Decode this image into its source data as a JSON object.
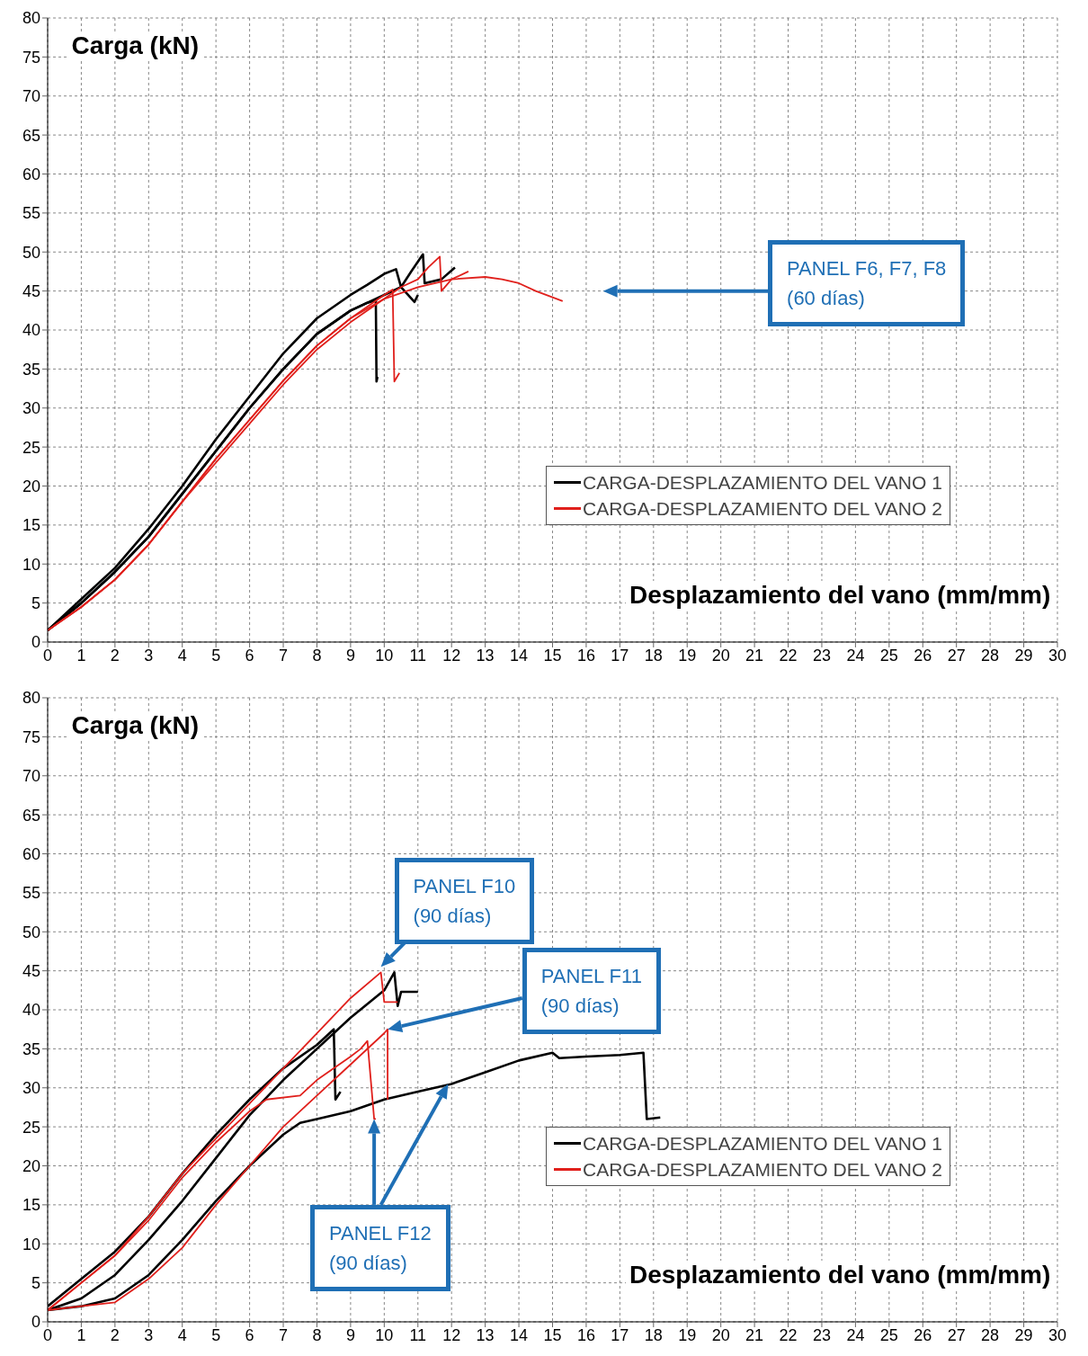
{
  "chart_data": [
    {
      "type": "line",
      "ylabel": "Carga (kN)",
      "xlabel": "Desplazamiento del vano (mm/mm)",
      "xlim": [
        0,
        30
      ],
      "xticks": [
        0,
        1,
        2,
        3,
        4,
        5,
        6,
        7,
        8,
        9,
        10,
        11,
        12,
        13,
        14,
        15,
        16,
        17,
        18,
        19,
        20,
        21,
        22,
        23,
        24,
        25,
        26,
        27,
        28,
        29,
        30
      ],
      "ylim": [
        0,
        80
      ],
      "yticks": [
        0,
        5,
        10,
        15,
        20,
        25,
        30,
        35,
        40,
        45,
        50,
        55,
        60,
        65,
        70,
        75,
        80
      ],
      "grid": true,
      "legend": "bottom right",
      "line_style": "solid",
      "annotations": [
        "PANEL F6, F7, F8\n(60 días)"
      ],
      "series": [
        {
          "name": "CARGA-DESPLAZAMIENTO DEL VANO 1",
          "color": "#000000",
          "x": [
            0,
            1,
            2,
            3,
            4,
            5,
            6,
            7,
            8,
            9,
            9.5,
            9.75,
            9.77,
            9.8
          ],
          "values": [
            1.5,
            5,
            9,
            13.5,
            19,
            24.5,
            30,
            35,
            39.5,
            42.5,
            43.5,
            43.8,
            33.4,
            34
          ]
        },
        {
          "color": "#000000",
          "x": [
            0,
            1,
            2,
            3,
            4,
            5,
            6,
            7,
            8,
            9,
            9.5,
            10,
            10.35,
            10.5,
            10.8,
            11.15,
            11.2,
            11.7,
            12.1
          ],
          "values": [
            1.5,
            5.5,
            9.5,
            14.5,
            20,
            26,
            31.5,
            37,
            41.5,
            44.5,
            45.8,
            47.2,
            47.8,
            45.5,
            47.5,
            49.7,
            46,
            46.5,
            48
          ]
        },
        {
          "color": "#000000",
          "x": [
            0,
            1,
            2,
            3,
            4,
            5,
            6,
            7,
            8,
            9,
            10,
            10.5,
            10.9,
            11
          ],
          "values": [
            1.5,
            5,
            9,
            13.5,
            19,
            24.5,
            30,
            35,
            39.5,
            42.5,
            44.5,
            45.5,
            43.6,
            44.5
          ]
        },
        {
          "name": "CARGA-DESPLAZAMIENTO DEL VANO 2",
          "color": "#e0201c",
          "x": [
            0,
            1,
            2,
            3,
            4,
            5,
            6,
            7,
            8,
            9,
            9.5,
            10,
            10.25,
            10.3,
            10.45
          ],
          "values": [
            1.5,
            4.5,
            8,
            12.5,
            18,
            23.5,
            28.5,
            33.5,
            38,
            41.5,
            43,
            44.5,
            45.2,
            33.4,
            34.5
          ]
        },
        {
          "color": "#e0201c",
          "x": [
            0,
            1,
            2,
            3,
            4,
            5,
            6,
            7,
            8,
            9,
            10,
            10.5,
            11,
            11.3,
            11.65,
            11.7,
            12,
            12.5
          ],
          "values": [
            1.5,
            4.5,
            8,
            12.5,
            18,
            23.5,
            28.5,
            33.5,
            38,
            41.5,
            44,
            45.5,
            46.5,
            48,
            49.4,
            45,
            46.5,
            47.5
          ]
        },
        {
          "color": "#e0201c",
          "x": [
            0,
            1,
            2,
            3,
            4,
            5,
            6,
            7,
            8,
            9,
            10,
            11,
            12,
            13,
            13.5,
            14,
            14.5,
            15,
            15.3
          ],
          "values": [
            1.5,
            4.5,
            8,
            12.5,
            18,
            23,
            28,
            33,
            37.5,
            41,
            44,
            45.5,
            46.5,
            46.8,
            46.5,
            46,
            45,
            44.2,
            43.7
          ]
        }
      ]
    },
    {
      "type": "line",
      "ylabel": "Carga (kN)",
      "xlabel": "Desplazamiento del vano (mm/mm)",
      "xlim": [
        0,
        30
      ],
      "xticks": [
        0,
        1,
        2,
        3,
        4,
        5,
        6,
        7,
        8,
        9,
        10,
        11,
        12,
        13,
        14,
        15,
        16,
        17,
        18,
        19,
        20,
        21,
        22,
        23,
        24,
        25,
        26,
        27,
        28,
        29,
        30
      ],
      "ylim": [
        0,
        80
      ],
      "yticks": [
        0,
        5,
        10,
        15,
        20,
        25,
        30,
        35,
        40,
        45,
        50,
        55,
        60,
        65,
        70,
        75,
        80
      ],
      "grid": true,
      "legend": "bottom right",
      "line_style": "solid",
      "annotations": [
        "PANEL F10\n(90 días)",
        "PANEL F11\n(90 días)",
        "PANEL F12\n(90 días)"
      ],
      "series": [
        {
          "name": "CARGA-DESPLAZAMIENTO DEL VANO 1",
          "color": "#000000",
          "x": [
            0,
            1,
            2,
            3,
            4,
            5,
            6,
            7,
            8,
            8.5,
            8.55,
            8.7
          ],
          "values": [
            2,
            5.5,
            9,
            13.5,
            19,
            24,
            28.5,
            32.5,
            35.5,
            37.5,
            28.5,
            29.5
          ]
        },
        {
          "color": "#000000",
          "x": [
            0,
            1,
            2,
            3,
            4,
            5,
            6,
            7,
            8,
            9,
            10,
            10.3,
            10.4,
            10.5,
            11
          ],
          "values": [
            1.5,
            3,
            6,
            10.5,
            15.5,
            21,
            26.5,
            31,
            35,
            39,
            42.5,
            44.8,
            40.5,
            42.3,
            42.3
          ]
        },
        {
          "color": "#000000",
          "x": [
            0,
            1,
            2,
            3,
            4,
            5,
            6,
            7,
            7.5,
            8,
            9,
            10,
            11,
            12,
            13,
            14,
            15,
            15.2,
            16,
            17,
            17.7,
            17.8,
            18.2
          ],
          "values": [
            1.5,
            2,
            3,
            6,
            10.5,
            15.5,
            20,
            24,
            25.5,
            26,
            27,
            28.5,
            29.5,
            30.5,
            32,
            33.5,
            34.5,
            33.8,
            34,
            34.2,
            34.5,
            26,
            26.2
          ]
        },
        {
          "name": "CARGA-DESPLAZAMIENTO DEL VANO 2",
          "color": "#e0201c",
          "x": [
            0,
            1,
            2,
            3,
            4,
            5,
            6,
            7,
            8,
            9,
            9.9,
            10,
            10.4
          ],
          "values": [
            1.5,
            5,
            8.5,
            13.5,
            19,
            23.5,
            28,
            32.5,
            37,
            41.5,
            44.8,
            41,
            41
          ]
        },
        {
          "color": "#e0201c",
          "x": [
            0,
            1,
            2,
            3,
            4,
            5,
            6,
            6.5,
            7.5,
            8,
            9,
            9.3,
            9.5,
            9.7,
            9.75
          ],
          "values": [
            1.5,
            5,
            8.5,
            13,
            18.5,
            23,
            27,
            28.5,
            29,
            31,
            34,
            35,
            36,
            26,
            26
          ]
        },
        {
          "color": "#e0201c",
          "x": [
            0,
            1,
            2,
            3,
            4,
            5,
            6,
            7,
            8,
            9,
            10,
            10.1,
            10.1
          ],
          "values": [
            1.5,
            2,
            2.5,
            5.5,
            9.5,
            15,
            20,
            25,
            29,
            33,
            37,
            37.5,
            28.5
          ]
        }
      ]
    }
  ]
}
